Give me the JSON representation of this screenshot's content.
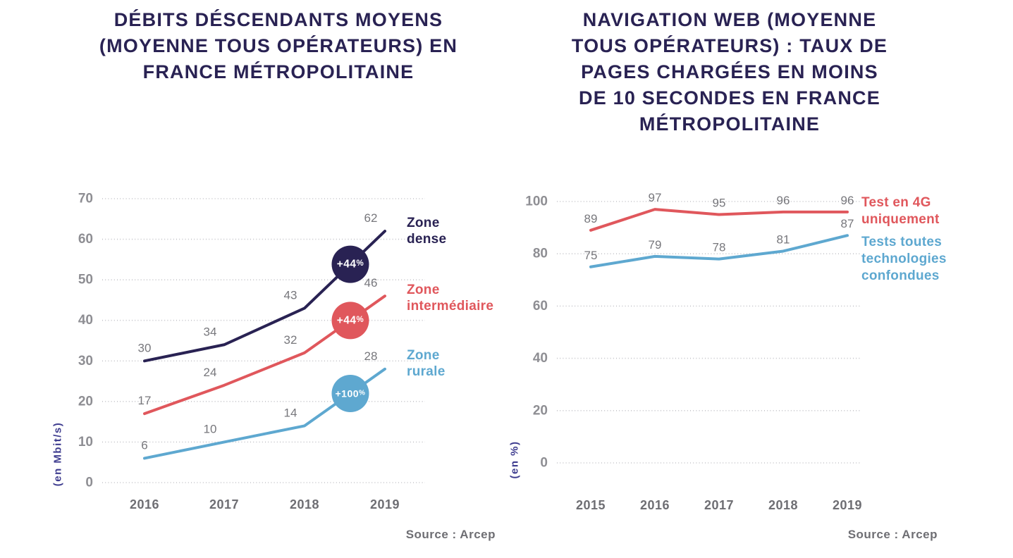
{
  "source_label": "Source : Arcep",
  "chart_data": [
    {
      "type": "line",
      "title": "DÉBITS DÉSCENDANTS MOYENS (MOYENNE TOUS OPÉRATEURS) EN FRANCE MÉTROPOLITAINE",
      "ylabel": "(en Mbit/s)",
      "xlabel": "",
      "source": "Source : Arcep",
      "categories": [
        "2016",
        "2017",
        "2018",
        "2019"
      ],
      "ylim": [
        0,
        70
      ],
      "yticks": [
        0,
        10,
        20,
        30,
        40,
        50,
        60,
        70
      ],
      "grid": true,
      "legend_position": "right",
      "series": [
        {
          "name": "Zone dense",
          "color": "#292253",
          "values": [
            30,
            34,
            43,
            62
          ],
          "badge": "+44%"
        },
        {
          "name": "Zone intermédiaire",
          "color": "#e0575c",
          "values": [
            17,
            24,
            32,
            46
          ],
          "badge": "+44%"
        },
        {
          "name": "Zone rurale",
          "color": "#5ea8d0",
          "values": [
            6,
            10,
            14,
            28
          ],
          "badge": "+100%"
        }
      ]
    },
    {
      "type": "line",
      "title": "NAVIGATION WEB (MOYENNE TOUS OPÉRATEURS) : TAUX DE PAGES CHARGÉES EN MOINS DE 10 SECONDES EN FRANCE MÉTROPOLITAINE",
      "ylabel": "(en %)",
      "xlabel": "",
      "source": "Source : Arcep",
      "categories": [
        "2015",
        "2016",
        "2017",
        "2018",
        "2019"
      ],
      "ylim": [
        0,
        100
      ],
      "yticks": [
        0,
        20,
        40,
        60,
        80,
        100
      ],
      "grid": true,
      "legend_position": "right",
      "series": [
        {
          "name": "Test en 4G uniquement",
          "color": "#e0575c",
          "values": [
            89,
            97,
            95,
            96,
            96
          ]
        },
        {
          "name": "Tests toutes technologies confondues",
          "color": "#5ea8d0",
          "values": [
            75,
            79,
            78,
            81,
            87
          ]
        }
      ]
    }
  ],
  "colors": {
    "title_navy": "#292253",
    "line_red": "#e0575c",
    "line_blue": "#5ea8d0",
    "axis_unit_indigo": "#3e3c8f",
    "tick_gray": "#8e8e93",
    "label_gray": "#6e6e73",
    "badge_text": "#ffffff"
  }
}
